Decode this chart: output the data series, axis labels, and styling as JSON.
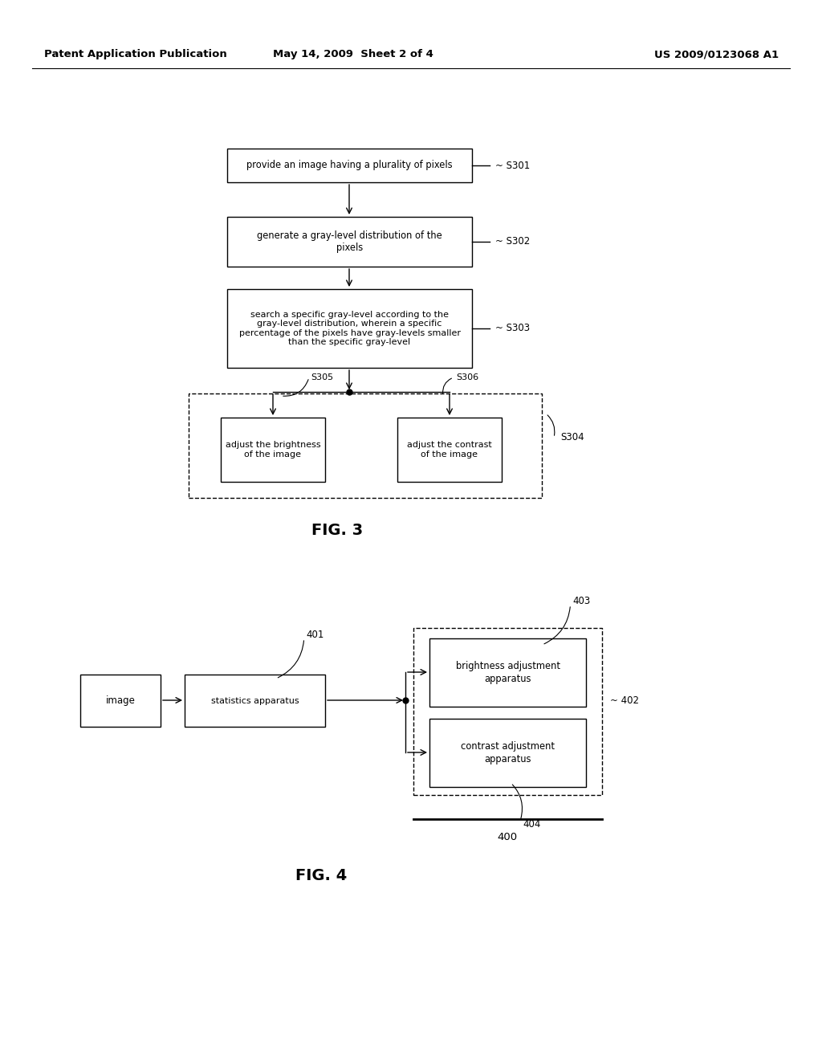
{
  "background_color": "#ffffff",
  "header_left": "Patent Application Publication",
  "header_mid": "May 14, 2009  Sheet 2 of 4",
  "header_right": "US 2009/0123068 A1",
  "fig3_title": "FIG. 3",
  "fig4_title": "FIG. 4",
  "box_s301_text": "provide an image having a plurality of pixels",
  "box_s302_text": "generate a gray-level distribution of the\npixels",
  "box_s303_text": "search a specific gray-level according to the\ngray-level distribution, wherein a specific\npercentage of the pixels have gray-levels smaller\nthan the specific gray-level",
  "box_s305_text": "adjust the brightness\nof the image",
  "box_s306_text": "adjust the contrast\nof the image",
  "label_s301": "S301",
  "label_s302": "S302",
  "label_s303": "S303",
  "label_s304": "S304",
  "label_s305": "S305",
  "label_s306": "S306",
  "box_image_text": "image",
  "box_stats_text": "statistics apparatus",
  "box_brightness_text": "brightness adjustment\napparatus",
  "box_contrast_text": "contrast adjustment\napparatus",
  "label_400": "400",
  "label_401": "401",
  "label_402": "402",
  "label_403": "403",
  "label_404": "404"
}
